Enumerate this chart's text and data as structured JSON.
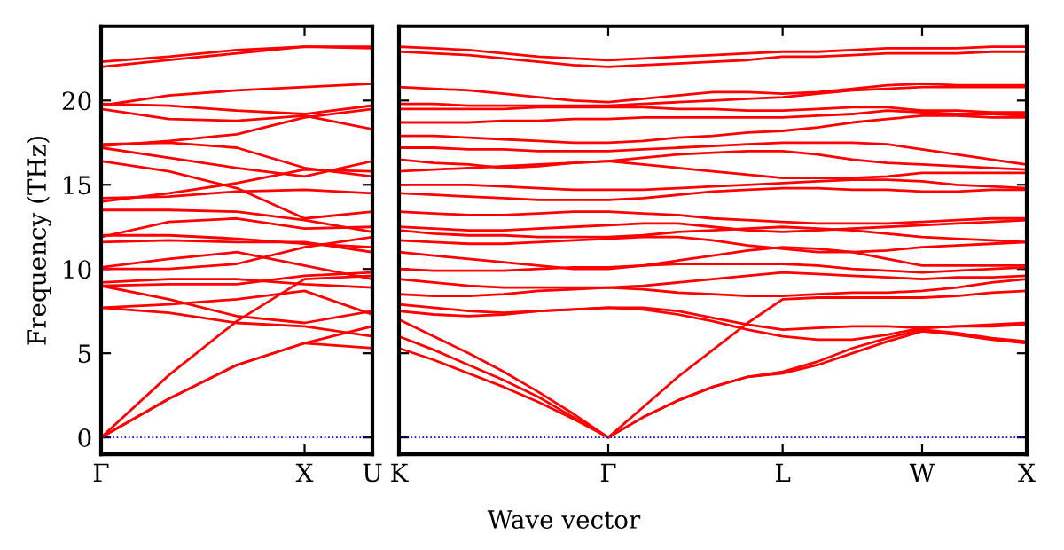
{
  "chart_data": [
    {
      "type": "line",
      "ylabel": "Frequency (THz)",
      "categories": [
        "Γ",
        null,
        null,
        "X",
        "U"
      ],
      "ylim": [
        -1,
        24.4
      ],
      "yticks": [
        0,
        5,
        10,
        15,
        20
      ],
      "grid": false,
      "line_style": "solid",
      "marker": "none",
      "ref_lines": [
        {
          "axis": "y",
          "value": 0,
          "color": "#0000ff",
          "line_style": "dotted"
        }
      ],
      "series": [
        {
          "color": "#ff0000",
          "values": [
            0,
            2.3,
            4.3,
            5.6,
            5.3
          ]
        },
        {
          "color": "#ff0000",
          "values": [
            0,
            2.3,
            4.3,
            5.6,
            6.6
          ]
        },
        {
          "color": "#ff0000",
          "values": [
            0,
            3.7,
            6.9,
            9.4,
            9.6
          ]
        },
        {
          "color": "#ff0000",
          "values": [
            7.7,
            7.4,
            6.8,
            6.6,
            6.0
          ]
        },
        {
          "color": "#ff0000",
          "values": [
            7.7,
            7.9,
            8.2,
            8.7,
            7.3
          ]
        },
        {
          "color": "#ff0000",
          "values": [
            9.0,
            8.2,
            7.2,
            6.8,
            7.5
          ]
        },
        {
          "color": "#ff0000",
          "values": [
            9.0,
            9.1,
            9.1,
            9.6,
            9.8
          ]
        },
        {
          "color": "#ff0000",
          "values": [
            9.2,
            9.4,
            9.4,
            9.1,
            8.9
          ]
        },
        {
          "color": "#ff0000",
          "values": [
            10.1,
            10.6,
            11.0,
            10.2,
            9.4
          ]
        },
        {
          "color": "#ff0000",
          "values": [
            10.0,
            10.0,
            10.3,
            11.3,
            11.9
          ]
        },
        {
          "color": "#ff0000",
          "values": [
            11.6,
            11.7,
            11.6,
            11.6,
            11.0
          ]
        },
        {
          "color": "#ff0000",
          "values": [
            11.9,
            12.8,
            13.0,
            12.4,
            12.5
          ]
        },
        {
          "color": "#ff0000",
          "values": [
            12.0,
            12.0,
            11.8,
            11.5,
            11.3
          ]
        },
        {
          "color": "#ff0000",
          "values": [
            13.5,
            13.5,
            13.4,
            12.9,
            12.2
          ]
        },
        {
          "color": "#ff0000",
          "values": [
            14.2,
            14.3,
            14.6,
            14.7,
            14.5
          ]
        },
        {
          "color": "#ff0000",
          "values": [
            14.0,
            14.5,
            15.1,
            15.9,
            15.8
          ]
        },
        {
          "color": "#ff0000",
          "values": [
            16.4,
            15.8,
            14.8,
            13.0,
            13.4
          ]
        },
        {
          "color": "#ff0000",
          "values": [
            17.2,
            16.6,
            16.0,
            15.5,
            16.4
          ]
        },
        {
          "color": "#ff0000",
          "values": [
            17.4,
            17.5,
            17.2,
            16.0,
            15.5
          ]
        },
        {
          "color": "#ff0000",
          "values": [
            17.3,
            17.6,
            18.0,
            19.0,
            19.5
          ]
        },
        {
          "color": "#ff0000",
          "values": [
            19.5,
            18.9,
            18.8,
            19.1,
            18.3
          ]
        },
        {
          "color": "#ff0000",
          "values": [
            19.8,
            19.7,
            19.4,
            19.2,
            19.7
          ]
        },
        {
          "color": "#ff0000",
          "values": [
            19.7,
            20.3,
            20.6,
            20.8,
            21.0
          ]
        },
        {
          "color": "#ff0000",
          "values": [
            22.0,
            22.4,
            22.8,
            23.2,
            23.2
          ]
        },
        {
          "color": "#ff0000",
          "values": [
            22.3,
            22.6,
            23.0,
            23.2,
            23.1
          ]
        }
      ]
    },
    {
      "type": "line",
      "xlabel": "Wave vector",
      "categories": [
        "K",
        null,
        null,
        null,
        null,
        null,
        "Γ",
        null,
        null,
        null,
        null,
        "L",
        null,
        null,
        null,
        "W",
        null,
        null,
        "X"
      ],
      "ylim": [
        -1,
        24.4
      ],
      "yticks": [
        0,
        5,
        10,
        15,
        20
      ],
      "tick_labels": "x",
      "grid": false,
      "line_style": "solid",
      "marker": "none",
      "ref_lines": [
        {
          "axis": "y",
          "value": 0,
          "color": "#0000ff",
          "line_style": "dotted"
        }
      ],
      "series": [
        {
          "color": "#ff0000",
          "values": [
            5.3,
            4.6,
            3.8,
            3.0,
            2.1,
            1.1,
            0,
            1.2,
            2.2,
            3.0,
            3.6,
            3.8,
            4.3,
            5.0,
            5.7,
            6.3,
            6.1,
            5.8,
            5.6
          ]
        },
        {
          "color": "#ff0000",
          "values": [
            6.0,
            5.2,
            4.3,
            3.4,
            2.4,
            1.2,
            0,
            1.2,
            2.2,
            3.0,
            3.6,
            3.9,
            4.5,
            5.3,
            5.9,
            6.4,
            6.2,
            5.9,
            5.7
          ]
        },
        {
          "color": "#ff0000",
          "values": [
            7.0,
            6.0,
            5.0,
            3.9,
            2.7,
            1.4,
            0,
            1.8,
            3.6,
            5.2,
            6.8,
            8.2,
            8.3,
            8.3,
            8.3,
            8.3,
            8.4,
            8.6,
            8.7
          ]
        },
        {
          "color": "#ff0000",
          "values": [
            7.5,
            7.3,
            7.2,
            7.3,
            7.5,
            7.6,
            7.7,
            7.6,
            7.3,
            6.9,
            6.4,
            6.0,
            5.8,
            5.8,
            6.1,
            6.5,
            6.6,
            6.7,
            6.8
          ]
        },
        {
          "color": "#ff0000",
          "values": [
            7.9,
            7.7,
            7.5,
            7.4,
            7.5,
            7.6,
            7.7,
            7.7,
            7.5,
            7.1,
            6.7,
            6.4,
            6.5,
            6.6,
            6.6,
            6.5,
            6.6,
            6.6,
            6.7
          ]
        },
        {
          "color": "#ff0000",
          "values": [
            8.5,
            8.4,
            8.4,
            8.5,
            8.7,
            8.8,
            8.9,
            8.8,
            8.6,
            8.5,
            8.4,
            8.4,
            8.5,
            8.6,
            8.6,
            8.7,
            8.9,
            9.2,
            9.4
          ]
        },
        {
          "color": "#ff0000",
          "values": [
            9.4,
            9.2,
            9.0,
            8.9,
            8.9,
            8.9,
            8.9,
            9.0,
            9.2,
            9.4,
            9.6,
            9.8,
            9.7,
            9.6,
            9.5,
            9.4,
            9.5,
            9.5,
            9.6
          ]
        },
        {
          "color": "#ff0000",
          "values": [
            10.0,
            9.9,
            9.9,
            9.9,
            10.0,
            10.1,
            10.1,
            10.2,
            10.3,
            10.3,
            10.3,
            10.3,
            10.2,
            10.0,
            9.9,
            9.8,
            9.9,
            10.0,
            10.1
          ]
        },
        {
          "color": "#ff0000",
          "values": [
            11.0,
            10.8,
            10.6,
            10.4,
            10.2,
            10.0,
            10.0,
            10.2,
            10.5,
            10.8,
            11.1,
            11.3,
            11.2,
            11.0,
            10.6,
            10.2,
            10.2,
            10.2,
            10.2
          ]
        },
        {
          "color": "#ff0000",
          "values": [
            11.7,
            11.6,
            11.5,
            11.5,
            11.6,
            11.7,
            11.8,
            11.9,
            11.9,
            11.7,
            11.4,
            11.2,
            11.0,
            11.0,
            11.1,
            11.3,
            11.4,
            11.5,
            11.6
          ]
        },
        {
          "color": "#ff0000",
          "values": [
            12.3,
            12.1,
            12.0,
            12.0,
            11.9,
            11.9,
            11.9,
            12.0,
            12.2,
            12.3,
            12.4,
            12.5,
            12.4,
            12.3,
            12.1,
            11.9,
            11.8,
            11.7,
            11.6
          ]
        },
        {
          "color": "#ff0000",
          "values": [
            12.5,
            12.4,
            12.3,
            12.3,
            12.4,
            12.5,
            12.6,
            12.7,
            12.7,
            12.5,
            12.3,
            12.2,
            12.3,
            12.4,
            12.5,
            12.6,
            12.7,
            12.8,
            12.9
          ]
        },
        {
          "color": "#ff0000",
          "values": [
            13.4,
            13.3,
            13.2,
            13.2,
            13.3,
            13.4,
            13.4,
            13.3,
            13.2,
            13.0,
            12.9,
            12.8,
            12.7,
            12.7,
            12.7,
            12.8,
            12.9,
            13.0,
            13.0
          ]
        },
        {
          "color": "#ff0000",
          "values": [
            14.5,
            14.4,
            14.3,
            14.2,
            14.1,
            14.1,
            14.1,
            14.2,
            14.4,
            14.6,
            14.7,
            14.8,
            14.8,
            14.7,
            14.7,
            14.6,
            14.6,
            14.7,
            14.7
          ]
        },
        {
          "color": "#ff0000",
          "values": [
            15.0,
            15.0,
            15.0,
            14.9,
            14.8,
            14.7,
            14.7,
            14.7,
            14.8,
            14.9,
            15.0,
            15.1,
            15.2,
            15.3,
            15.3,
            15.2,
            15.0,
            14.9,
            14.8
          ]
        },
        {
          "color": "#ff0000",
          "values": [
            15.8,
            15.9,
            16.0,
            16.1,
            16.2,
            16.3,
            16.4,
            16.2,
            16.0,
            15.8,
            15.6,
            15.4,
            15.4,
            15.4,
            15.5,
            15.7,
            15.7,
            15.7,
            15.7
          ]
        },
        {
          "color": "#ff0000",
          "values": [
            16.5,
            16.3,
            16.2,
            16.0,
            16.1,
            16.3,
            16.4,
            16.6,
            16.8,
            16.9,
            17.0,
            17.0,
            16.8,
            16.5,
            16.3,
            16.2,
            16.1,
            16.0,
            15.9
          ]
        },
        {
          "color": "#ff0000",
          "values": [
            17.2,
            17.2,
            17.1,
            17.1,
            17.0,
            17.0,
            17.0,
            17.1,
            17.2,
            17.3,
            17.4,
            17.5,
            17.5,
            17.5,
            17.4,
            17.1,
            16.8,
            16.5,
            16.2
          ]
        },
        {
          "color": "#ff0000",
          "values": [
            17.9,
            17.9,
            17.8,
            17.7,
            17.6,
            17.5,
            17.5,
            17.6,
            17.8,
            17.9,
            18.1,
            18.2,
            18.4,
            18.7,
            18.9,
            19.1,
            19.1,
            19.0,
            19.0
          ]
        },
        {
          "color": "#ff0000",
          "values": [
            18.7,
            18.7,
            18.7,
            18.8,
            18.8,
            18.9,
            18.9,
            19.0,
            19.0,
            19.0,
            19.0,
            19.0,
            19.1,
            19.2,
            19.4,
            19.3,
            19.2,
            19.2,
            19.1
          ]
        },
        {
          "color": "#ff0000",
          "values": [
            19.5,
            19.5,
            19.5,
            19.5,
            19.6,
            19.6,
            19.6,
            19.6,
            19.5,
            19.5,
            19.4,
            19.4,
            19.5,
            19.6,
            19.6,
            19.4,
            19.4,
            19.3,
            19.3
          ]
        },
        {
          "color": "#ff0000",
          "values": [
            19.8,
            19.8,
            19.7,
            19.7,
            19.7,
            19.7,
            19.7,
            19.8,
            19.9,
            20.0,
            20.1,
            20.2,
            20.4,
            20.6,
            20.7,
            20.8,
            20.8,
            20.8,
            20.8
          ]
        },
        {
          "color": "#ff0000",
          "values": [
            20.8,
            20.7,
            20.6,
            20.4,
            20.2,
            20.0,
            19.9,
            20.1,
            20.3,
            20.5,
            20.5,
            20.4,
            20.5,
            20.7,
            20.9,
            21.0,
            20.9,
            20.9,
            20.9
          ]
        },
        {
          "color": "#ff0000",
          "values": [
            23.2,
            23.1,
            23.0,
            22.8,
            22.6,
            22.5,
            22.4,
            22.5,
            22.6,
            22.7,
            22.8,
            22.9,
            22.9,
            23.0,
            23.1,
            23.1,
            23.1,
            23.2,
            23.2
          ]
        },
        {
          "color": "#ff0000",
          "values": [
            22.9,
            22.8,
            22.7,
            22.5,
            22.3,
            22.1,
            22.0,
            22.1,
            22.2,
            22.3,
            22.4,
            22.6,
            22.6,
            22.7,
            22.8,
            22.8,
            22.8,
            22.9,
            22.9
          ]
        }
      ]
    }
  ]
}
